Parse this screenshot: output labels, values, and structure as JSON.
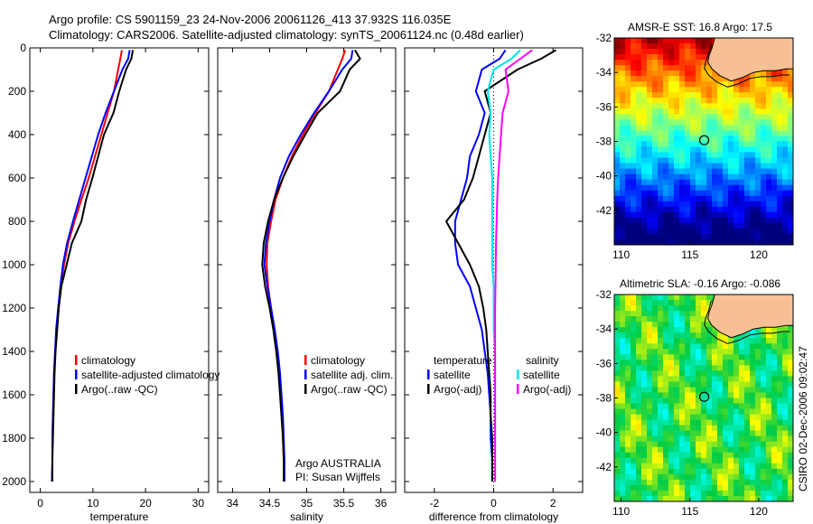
{
  "figure": {
    "title_line1": "Argo profile: CS 5901159_23 24-Nov-2006 20061126_413 37.932S 116.035E",
    "title_line2": "Climatology: CARS2006. Satellite-adjusted climatology: synTS_20061124.nc (0.48d earlier)",
    "side_label": "CSIRO 02-Dec-2006 09:02:47",
    "colors": {
      "climatology": "#ff0000",
      "satellite": "#0000ff",
      "argo": "#000000",
      "salinity_satellite": "#00e5e5",
      "salinity_argo": "#ff00ff"
    }
  },
  "chart_data": [
    {
      "type": "line",
      "panel": "temperature",
      "xlabel": "temperature",
      "xlim": [
        -2,
        32
      ],
      "xticks": [
        0,
        10,
        20,
        30
      ],
      "ylim": [
        0,
        2050
      ],
      "yreversed": true,
      "yticks": [
        0,
        200,
        400,
        600,
        800,
        1000,
        1200,
        1400,
        1600,
        1800,
        2000
      ],
      "legend": [
        "climatology",
        "satellite-adjusted climatology",
        "Argo(..raw -QC)"
      ],
      "series": [
        {
          "name": "climatology",
          "x": [
            15.5,
            15.2,
            14.8,
            14.0,
            12.8,
            11.6,
            10.4,
            9.2,
            7.8,
            6.5,
            5.3,
            4.5,
            3.9,
            3.5,
            3.1,
            2.8,
            2.6,
            2.5,
            2.4,
            2.3,
            2.3,
            2.2
          ],
          "y": [
            10,
            50,
            100,
            200,
            300,
            400,
            500,
            600,
            700,
            800,
            900,
            1000,
            1100,
            1200,
            1300,
            1400,
            1500,
            1600,
            1700,
            1800,
            1900,
            2000
          ]
        },
        {
          "name": "satellite-adjusted climatology",
          "x": [
            17.0,
            16.7,
            15.6,
            14.0,
            12.4,
            11.0,
            9.8,
            8.6,
            7.4,
            6.2,
            5.1,
            4.3,
            3.8,
            3.4,
            3.0,
            2.8,
            2.6,
            2.5,
            2.4,
            2.3,
            2.3,
            2.2
          ],
          "y": [
            10,
            50,
            100,
            200,
            300,
            400,
            500,
            600,
            700,
            800,
            900,
            1000,
            1100,
            1200,
            1300,
            1400,
            1500,
            1600,
            1700,
            1800,
            1900,
            2000
          ]
        },
        {
          "name": "Argo(..raw -QC)",
          "x": [
            17.6,
            17.3,
            16.3,
            15.0,
            13.9,
            12.1,
            11.0,
            9.9,
            8.7,
            7.8,
            6.0,
            5.0,
            4.0,
            3.5,
            3.2,
            2.9,
            2.7,
            2.6,
            2.5,
            2.4,
            2.3,
            2.3
          ],
          "y": [
            10,
            50,
            100,
            200,
            300,
            400,
            500,
            600,
            700,
            800,
            900,
            1000,
            1100,
            1200,
            1300,
            1400,
            1500,
            1600,
            1700,
            1800,
            1900,
            2000
          ]
        }
      ]
    },
    {
      "type": "line",
      "panel": "salinity",
      "xlabel": "salinity",
      "xlim": [
        33.8,
        36.2
      ],
      "xticks": [
        34,
        34.5,
        35,
        35.5,
        36
      ],
      "ylim": [
        0,
        2050
      ],
      "yreversed": true,
      "legend": [
        "climatology",
        "satellite adj. clim.",
        "Argo(..raw -QC)"
      ],
      "annotation": [
        "Argo AUSTRALIA",
        "PI: Susan Wijffels"
      ],
      "series": [
        {
          "name": "climatology",
          "x": [
            35.52,
            35.48,
            35.42,
            35.3,
            35.12,
            34.95,
            34.8,
            34.68,
            34.58,
            34.52,
            34.47,
            34.46,
            34.48,
            34.52,
            34.56,
            34.6,
            34.63,
            34.65,
            34.67,
            34.68,
            34.69,
            34.7
          ],
          "y": [
            10,
            50,
            100,
            200,
            300,
            400,
            500,
            600,
            700,
            800,
            900,
            1000,
            1100,
            1200,
            1300,
            1400,
            1500,
            1600,
            1700,
            1800,
            1900,
            2000
          ]
        },
        {
          "name": "satellite adj. clim.",
          "x": [
            35.62,
            35.6,
            35.48,
            35.3,
            35.1,
            34.92,
            34.76,
            34.64,
            34.56,
            34.5,
            34.45,
            34.43,
            34.47,
            34.52,
            34.57,
            34.61,
            34.64,
            34.66,
            34.68,
            34.69,
            34.7,
            34.7
          ],
          "y": [
            10,
            50,
            100,
            200,
            300,
            400,
            500,
            600,
            700,
            800,
            900,
            1000,
            1100,
            1200,
            1300,
            1400,
            1500,
            1600,
            1700,
            1800,
            1900,
            2000
          ]
        },
        {
          "name": "Argo(..raw -QC)",
          "x": [
            35.65,
            35.72,
            35.58,
            35.45,
            35.15,
            34.98,
            34.82,
            34.68,
            34.56,
            34.48,
            34.42,
            34.4,
            34.44,
            34.5,
            34.55,
            34.59,
            34.62,
            34.64,
            34.66,
            34.68,
            34.69,
            34.69
          ],
          "y": [
            10,
            50,
            100,
            200,
            300,
            400,
            500,
            600,
            700,
            800,
            900,
            1000,
            1100,
            1200,
            1300,
            1400,
            1500,
            1600,
            1700,
            1800,
            1900,
            2000
          ]
        }
      ]
    },
    {
      "type": "line",
      "panel": "difference",
      "xlabel": "difference from climatology",
      "xlim": [
        -3,
        3
      ],
      "xticks": [
        -2,
        0,
        2
      ],
      "ylim": [
        0,
        2050
      ],
      "yreversed": true,
      "legend_temperature_title": "temperature",
      "legend_salinity_title": "salinity",
      "legend_temperature": [
        "satellite",
        "Argo(-adj)"
      ],
      "legend_salinity": [
        "satellite",
        "Argo(-adj)"
      ],
      "series": [
        {
          "name": "temperature satellite",
          "x": [
            0.4,
            0.2,
            -0.4,
            -0.6,
            -0.3,
            -0.5,
            -0.8,
            -0.9,
            -1.1,
            -1.3,
            -1.3,
            -1.2,
            -0.8,
            -0.6,
            -0.4,
            -0.3,
            -0.2,
            -0.15,
            -0.1,
            -0.1,
            -0.05,
            -0.05
          ],
          "y": [
            10,
            50,
            100,
            200,
            300,
            400,
            500,
            600,
            700,
            800,
            900,
            1000,
            1100,
            1200,
            1300,
            1400,
            1500,
            1600,
            1700,
            1800,
            1900,
            2000
          ]
        },
        {
          "name": "temperature Argo(-adj)",
          "x": [
            2.1,
            1.6,
            0.8,
            -0.3,
            -0.1,
            -0.3,
            -0.5,
            -0.7,
            -1.0,
            -1.6,
            -1.2,
            -0.8,
            -0.5,
            -0.35,
            -0.25,
            -0.2,
            -0.15,
            -0.1,
            -0.1,
            -0.05,
            -0.05,
            -0.05
          ],
          "y": [
            10,
            50,
            100,
            200,
            300,
            400,
            500,
            600,
            700,
            800,
            900,
            1000,
            1100,
            1200,
            1300,
            1400,
            1500,
            1600,
            1700,
            1800,
            1900,
            2000
          ]
        },
        {
          "name": "salinity satellite",
          "x": [
            0.9,
            0.6,
            0.0,
            -0.2,
            -0.1,
            -0.15,
            -0.1,
            -0.05,
            -0.05,
            -0.05,
            -0.05,
            -0.05,
            0.0,
            0.0,
            0.0,
            0.05,
            0.05,
            0.05,
            0.05,
            0.05,
            0.05,
            0.05
          ],
          "y": [
            10,
            50,
            100,
            200,
            300,
            400,
            500,
            600,
            700,
            800,
            900,
            1000,
            1100,
            1200,
            1300,
            1400,
            1500,
            1600,
            1700,
            1800,
            1900,
            2000
          ]
        },
        {
          "name": "salinity Argo(-adj)",
          "x": [
            1.3,
            0.9,
            0.4,
            0.5,
            0.3,
            0.25,
            0.2,
            0.15,
            0.12,
            0.1,
            0.08,
            0.07,
            0.06,
            0.05,
            0.05,
            0.05,
            0.05,
            0.05,
            0.05,
            0.05,
            0.05,
            0.05
          ],
          "y": [
            10,
            50,
            100,
            200,
            300,
            400,
            500,
            600,
            700,
            800,
            900,
            1000,
            1100,
            1200,
            1300,
            1400,
            1500,
            1600,
            1700,
            1800,
            1900,
            2000
          ]
        }
      ]
    },
    {
      "type": "heatmap",
      "panel": "sst-map",
      "title": "AMSR-E SST: 16.8 Argo: 17.5",
      "xlim": [
        109.5,
        122.5
      ],
      "ylim": [
        -44,
        -32
      ],
      "xticks": [
        110,
        115,
        120
      ],
      "yticks": [
        -32,
        -34,
        -36,
        -38,
        -40,
        -42
      ],
      "marker": {
        "lon": 116.035,
        "lat": -37.932
      },
      "colorscale": [
        "#00007f",
        "#0000ff",
        "#0080ff",
        "#00ffff",
        "#80ff80",
        "#ffff00",
        "#ff8000",
        "#ff0000",
        "#7f0000"
      ]
    },
    {
      "type": "heatmap",
      "panel": "sla-map",
      "title": "Altimetric SLA: -0.16 Argo: -0.086",
      "xlim": [
        109.5,
        122.5
      ],
      "ylim": [
        -44,
        -32
      ],
      "xticks": [
        110,
        115,
        120
      ],
      "yticks": [
        -32,
        -34,
        -36,
        -38,
        -40,
        -42
      ],
      "marker": {
        "lon": 116.035,
        "lat": -37.932
      },
      "colorscale": [
        "#0000ff",
        "#00ffff",
        "#00cc44",
        "#ffff00",
        "#ff8000",
        "#ff0000"
      ]
    }
  ]
}
